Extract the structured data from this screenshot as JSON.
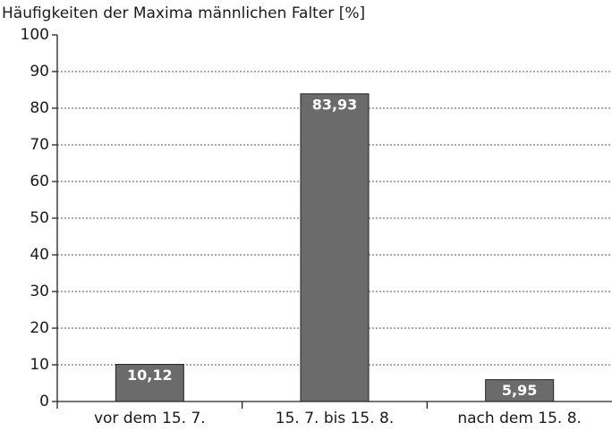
{
  "chart_data": {
    "type": "bar",
    "title": "Häufigkeiten der Maxima männlichen Falter [%]",
    "categories": [
      "vor dem 15. 7.",
      "15. 7. bis 15. 8.",
      "nach dem 15. 8."
    ],
    "values": [
      10.12,
      83.93,
      5.95
    ],
    "value_labels": [
      "10,12",
      "83,93",
      "5,95"
    ],
    "color": "#6b6b6b",
    "ylim": [
      0,
      100
    ],
    "yticks": [
      0,
      10,
      20,
      30,
      40,
      50,
      60,
      70,
      80,
      90,
      100
    ],
    "grid": true
  }
}
